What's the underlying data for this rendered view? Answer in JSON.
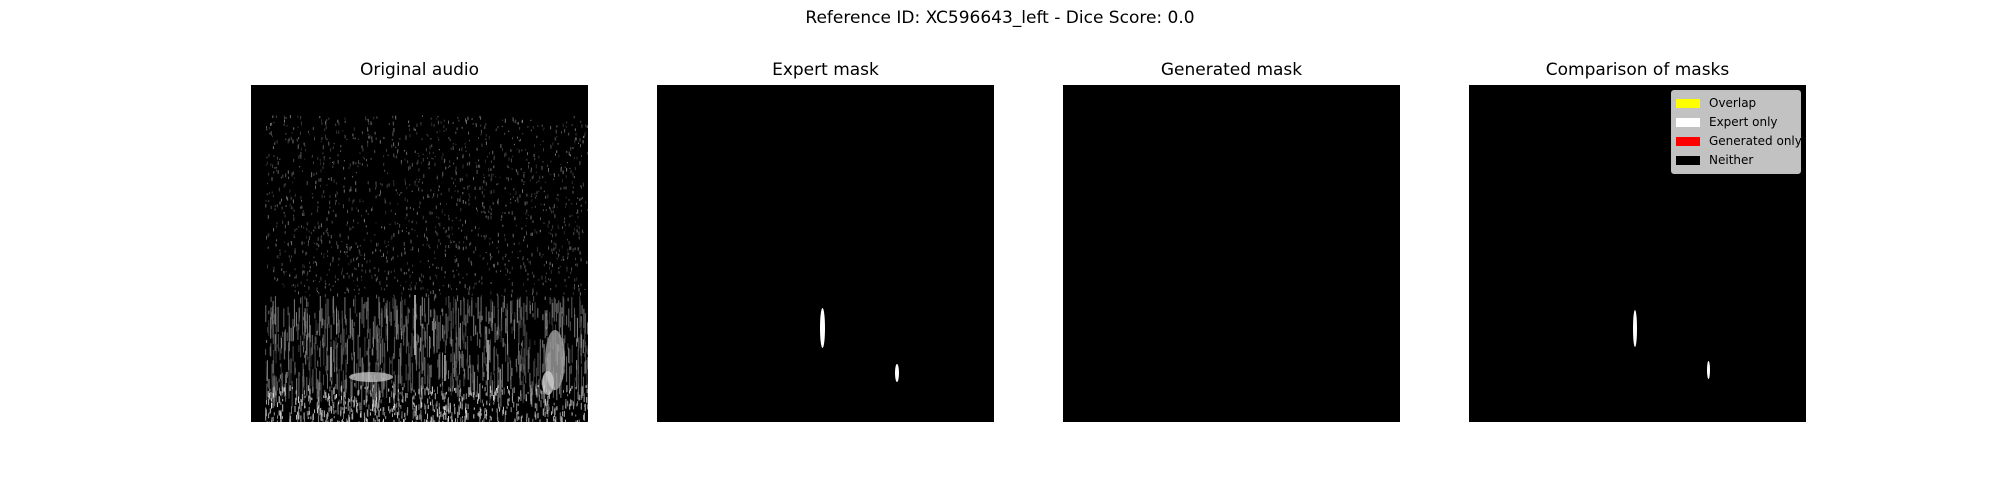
{
  "figure": {
    "suptitle": "Reference ID: XC596643_left - Dice Score: 0.0"
  },
  "panels": [
    {
      "title": "Original audio"
    },
    {
      "title": "Expert mask"
    },
    {
      "title": "Generated mask"
    },
    {
      "title": "Comparison of masks"
    }
  ],
  "legend": {
    "items": [
      {
        "label": "Overlap",
        "color": "#ffff00"
      },
      {
        "label": "Expert only",
        "color": "#ffffff"
      },
      {
        "label": "Generated only",
        "color": "#ff0000"
      },
      {
        "label": "Neither",
        "color": "#000000"
      }
    ]
  },
  "colors": {
    "background": "#ffffff",
    "image_background": "#000000",
    "expert_mask": "#ffffff"
  }
}
